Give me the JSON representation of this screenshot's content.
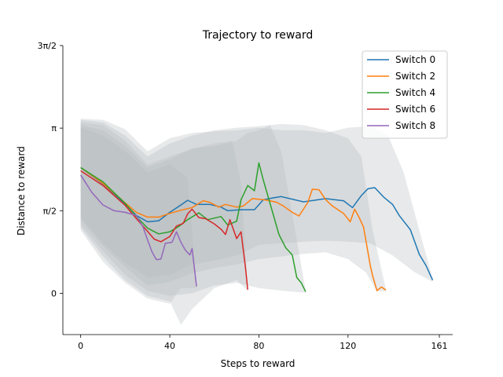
{
  "chart_data": {
    "type": "line",
    "title": "Trajectory to reward",
    "xlabel": "Steps to reward",
    "ylabel": "Distance to reward",
    "xlim": [
      -8,
      167
    ],
    "ylim": [
      -0.785,
      4.712
    ],
    "x_ticks": [
      {
        "value": 0,
        "label": "0"
      },
      {
        "value": 40,
        "label": "40"
      },
      {
        "value": 80,
        "label": "80"
      },
      {
        "value": 120,
        "label": "120"
      },
      {
        "value": 161,
        "label": "161"
      }
    ],
    "y_ticks": [
      {
        "value": 0,
        "label": "0"
      },
      {
        "value": 1.5708,
        "label": "π/2"
      },
      {
        "value": 3.1416,
        "label": "π"
      },
      {
        "value": 4.7124,
        "label": "3π/2"
      }
    ],
    "legend": {
      "position": "top-right"
    },
    "band_color": "#b4bcbf",
    "series": [
      {
        "name": "Switch 0",
        "color": "#1f77b4",
        "points": [
          [
            0,
            2.39
          ],
          [
            10,
            2.08
          ],
          [
            20,
            1.7
          ],
          [
            25,
            1.48
          ],
          [
            30,
            1.36
          ],
          [
            35,
            1.38
          ],
          [
            40,
            1.54
          ],
          [
            45,
            1.68
          ],
          [
            48,
            1.77
          ],
          [
            52,
            1.69
          ],
          [
            58,
            1.69
          ],
          [
            63,
            1.64
          ],
          [
            66,
            1.57
          ],
          [
            72,
            1.59
          ],
          [
            78,
            1.59
          ],
          [
            82,
            1.78
          ],
          [
            87,
            1.82
          ],
          [
            90,
            1.84
          ],
          [
            95,
            1.79
          ],
          [
            100,
            1.74
          ],
          [
            110,
            1.8
          ],
          [
            118,
            1.76
          ],
          [
            122,
            1.63
          ],
          [
            126,
            1.86
          ],
          [
            129,
            1.99
          ],
          [
            132,
            2.01
          ],
          [
            136,
            1.83
          ],
          [
            140,
            1.69
          ],
          [
            143,
            1.48
          ],
          [
            148,
            1.21
          ],
          [
            152,
            0.74
          ],
          [
            155,
            0.53
          ],
          [
            158,
            0.25
          ]
        ]
      },
      {
        "name": "Switch 2",
        "color": "#ff7f0e",
        "points": [
          [
            0,
            2.39
          ],
          [
            10,
            2.09
          ],
          [
            20,
            1.72
          ],
          [
            25,
            1.54
          ],
          [
            30,
            1.45
          ],
          [
            35,
            1.45
          ],
          [
            40,
            1.52
          ],
          [
            45,
            1.58
          ],
          [
            50,
            1.63
          ],
          [
            55,
            1.76
          ],
          [
            58,
            1.73
          ],
          [
            62,
            1.64
          ],
          [
            65,
            1.69
          ],
          [
            70,
            1.64
          ],
          [
            73,
            1.66
          ],
          [
            77,
            1.8
          ],
          [
            82,
            1.78
          ],
          [
            85,
            1.76
          ],
          [
            88,
            1.73
          ],
          [
            91,
            1.66
          ],
          [
            95,
            1.54
          ],
          [
            98,
            1.47
          ],
          [
            102,
            1.73
          ],
          [
            104,
            1.98
          ],
          [
            107,
            1.97
          ],
          [
            110,
            1.78
          ],
          [
            113,
            1.66
          ],
          [
            118,
            1.52
          ],
          [
            121,
            1.36
          ],
          [
            123,
            1.6
          ],
          [
            125,
            1.44
          ],
          [
            127,
            1.26
          ],
          [
            130,
            0.53
          ],
          [
            131,
            0.34
          ],
          [
            133,
            0.05
          ],
          [
            135,
            0.12
          ],
          [
            137,
            0.06
          ]
        ]
      },
      {
        "name": "Switch 4",
        "color": "#2ca02c",
        "points": [
          [
            0,
            2.39
          ],
          [
            10,
            2.12
          ],
          [
            20,
            1.71
          ],
          [
            25,
            1.46
          ],
          [
            30,
            1.24
          ],
          [
            35,
            1.13
          ],
          [
            40,
            1.17
          ],
          [
            44,
            1.27
          ],
          [
            48,
            1.4
          ],
          [
            53,
            1.53
          ],
          [
            57,
            1.4
          ],
          [
            60,
            1.43
          ],
          [
            63,
            1.46
          ],
          [
            66,
            1.3
          ],
          [
            70,
            1.37
          ],
          [
            72,
            1.78
          ],
          [
            75,
            2.05
          ],
          [
            78,
            1.95
          ],
          [
            80,
            2.48
          ],
          [
            82,
            2.15
          ],
          [
            85,
            1.71
          ],
          [
            89,
            1.12
          ],
          [
            92,
            0.87
          ],
          [
            95,
            0.73
          ],
          [
            97,
            0.3
          ],
          [
            99,
            0.2
          ],
          [
            101,
            0.03
          ]
        ]
      },
      {
        "name": "Switch 6",
        "color": "#d62728",
        "points": [
          [
            0,
            2.33
          ],
          [
            10,
            2.05
          ],
          [
            20,
            1.67
          ],
          [
            25,
            1.42
          ],
          [
            30,
            1.18
          ],
          [
            33,
            1.03
          ],
          [
            36,
            0.98
          ],
          [
            40,
            1.08
          ],
          [
            43,
            1.28
          ],
          [
            46,
            1.33
          ],
          [
            48,
            1.51
          ],
          [
            50,
            1.6
          ],
          [
            53,
            1.44
          ],
          [
            56,
            1.42
          ],
          [
            60,
            1.32
          ],
          [
            63,
            1.22
          ],
          [
            65,
            1.12
          ],
          [
            67,
            1.4
          ],
          [
            70,
            1.04
          ],
          [
            72,
            1.17
          ],
          [
            74,
            0.48
          ],
          [
            75,
            0.07
          ]
        ]
      },
      {
        "name": "Switch 8",
        "color": "#9467bd",
        "points": [
          [
            0,
            2.25
          ],
          [
            5,
            1.92
          ],
          [
            10,
            1.68
          ],
          [
            15,
            1.57
          ],
          [
            20,
            1.54
          ],
          [
            25,
            1.48
          ],
          [
            28,
            1.26
          ],
          [
            30,
            1.02
          ],
          [
            32,
            0.79
          ],
          [
            34,
            0.64
          ],
          [
            36,
            0.65
          ],
          [
            38,
            0.95
          ],
          [
            41,
            0.97
          ],
          [
            43,
            1.17
          ],
          [
            45,
            0.97
          ],
          [
            47,
            0.82
          ],
          [
            49,
            0.73
          ],
          [
            50,
            0.85
          ],
          [
            52,
            0.13
          ]
        ]
      }
    ],
    "bands": [
      {
        "series": "Switch 0",
        "lower": [
          [
            0,
            1.45
          ],
          [
            10,
            0.95
          ],
          [
            20,
            0.58
          ],
          [
            30,
            0.3
          ],
          [
            40,
            0.35
          ],
          [
            50,
            0.55
          ],
          [
            60,
            0.62
          ],
          [
            70,
            0.72
          ],
          [
            80,
            0.92
          ],
          [
            90,
            0.95
          ],
          [
            100,
            0.98
          ],
          [
            110,
            1.0
          ],
          [
            120,
            0.98
          ],
          [
            130,
            0.95
          ],
          [
            140,
            0.72
          ],
          [
            150,
            0.4
          ],
          [
            158,
            0.22
          ]
        ],
        "upper": [
          [
            0,
            3.32
          ],
          [
            10,
            3.3
          ],
          [
            20,
            3.12
          ],
          [
            30,
            2.7
          ],
          [
            40,
            2.95
          ],
          [
            50,
            3.05
          ],
          [
            60,
            3.08
          ],
          [
            70,
            3.1
          ],
          [
            80,
            3.15
          ],
          [
            90,
            3.1
          ],
          [
            100,
            3.1
          ],
          [
            110,
            3.05
          ],
          [
            120,
            3.15
          ],
          [
            130,
            3.18
          ],
          [
            138,
            3.0
          ],
          [
            145,
            2.3
          ],
          [
            152,
            1.2
          ],
          [
            158,
            0.28
          ]
        ]
      },
      {
        "series": "Switch 2",
        "lower": [
          [
            0,
            1.4
          ],
          [
            10,
            0.9
          ],
          [
            20,
            0.5
          ],
          [
            30,
            0.15
          ],
          [
            40,
            0.22
          ],
          [
            50,
            0.38
          ],
          [
            60,
            0.48
          ],
          [
            70,
            0.55
          ],
          [
            80,
            0.65
          ],
          [
            90,
            0.7
          ],
          [
            100,
            0.75
          ],
          [
            110,
            0.78
          ],
          [
            120,
            0.65
          ],
          [
            128,
            0.4
          ],
          [
            133,
            0.04
          ],
          [
            137,
            0.04
          ]
        ],
        "upper": [
          [
            0,
            3.3
          ],
          [
            10,
            3.25
          ],
          [
            20,
            3.0
          ],
          [
            30,
            2.6
          ],
          [
            40,
            2.85
          ],
          [
            50,
            3.0
          ],
          [
            60,
            3.1
          ],
          [
            70,
            3.15
          ],
          [
            80,
            3.18
          ],
          [
            90,
            3.22
          ],
          [
            100,
            3.2
          ],
          [
            110,
            3.1
          ],
          [
            120,
            2.95
          ],
          [
            126,
            2.6
          ],
          [
            131,
            1.2
          ],
          [
            137,
            0.08
          ]
        ]
      },
      {
        "series": "Switch 4",
        "lower": [
          [
            0,
            1.3
          ],
          [
            10,
            0.8
          ],
          [
            20,
            0.35
          ],
          [
            30,
            0.05
          ],
          [
            40,
            -0.05
          ],
          [
            50,
            0.0
          ],
          [
            60,
            0.15
          ],
          [
            70,
            0.2
          ],
          [
            80,
            0.1
          ],
          [
            90,
            0.05
          ],
          [
            101,
            0.01
          ]
        ],
        "upper": [
          [
            0,
            3.25
          ],
          [
            10,
            3.2
          ],
          [
            20,
            2.9
          ],
          [
            30,
            2.45
          ],
          [
            40,
            2.6
          ],
          [
            50,
            2.75
          ],
          [
            60,
            2.8
          ],
          [
            70,
            2.9
          ],
          [
            75,
            3.05
          ],
          [
            80,
            3.1
          ],
          [
            85,
            3.2
          ],
          [
            90,
            2.7
          ],
          [
            95,
            1.5
          ],
          [
            101,
            0.05
          ]
        ]
      },
      {
        "series": "Switch 6",
        "lower": [
          [
            0,
            1.25
          ],
          [
            10,
            0.7
          ],
          [
            20,
            0.25
          ],
          [
            30,
            -0.05
          ],
          [
            40,
            -0.15
          ],
          [
            45,
            -0.6
          ],
          [
            50,
            -0.3
          ],
          [
            60,
            0.1
          ],
          [
            70,
            0.25
          ],
          [
            75,
            0.05
          ]
        ],
        "upper": [
          [
            0,
            3.2
          ],
          [
            10,
            3.1
          ],
          [
            20,
            2.8
          ],
          [
            30,
            2.4
          ],
          [
            40,
            2.55
          ],
          [
            50,
            2.75
          ],
          [
            60,
            2.85
          ],
          [
            68,
            2.9
          ],
          [
            72,
            2.1
          ],
          [
            75,
            0.1
          ]
        ]
      },
      {
        "series": "Switch 8",
        "lower": [
          [
            0,
            1.2
          ],
          [
            10,
            0.6
          ],
          [
            20,
            0.2
          ],
          [
            30,
            -0.1
          ],
          [
            40,
            -0.2
          ],
          [
            45,
            0.1
          ],
          [
            52,
            0.1
          ]
        ],
        "upper": [
          [
            0,
            3.15
          ],
          [
            10,
            3.0
          ],
          [
            20,
            2.7
          ],
          [
            30,
            2.3
          ],
          [
            40,
            2.45
          ],
          [
            48,
            2.2
          ],
          [
            52,
            0.15
          ]
        ]
      }
    ]
  }
}
